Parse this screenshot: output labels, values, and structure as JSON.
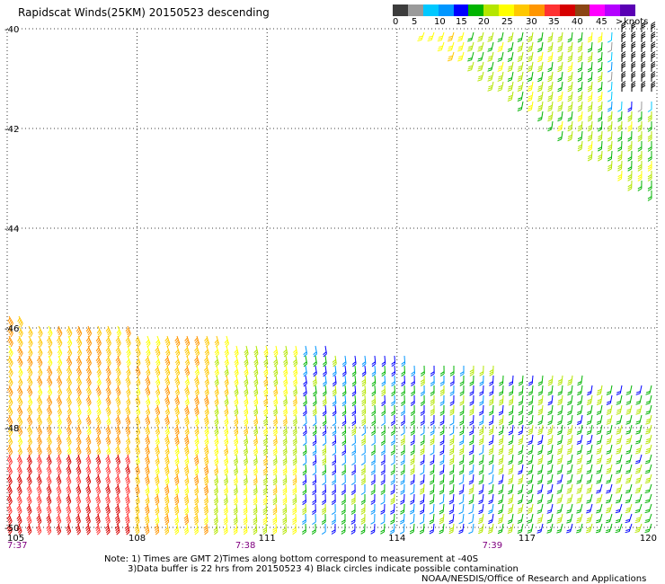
{
  "title": "Rapidscat Winds(25KM) 20150523 descending",
  "legend": {
    "colors": [
      "#3c3c3c",
      "#9a9a9a",
      "#00c8ff",
      "#0096ff",
      "#0000ff",
      "#00b400",
      "#b4e600",
      "#ffff00",
      "#ffc800",
      "#ff9600",
      "#ff3232",
      "#d70000",
      "#8b4513",
      "#ff00ff",
      "#b400ff",
      "#5a00b4"
    ],
    "ticks": [
      "0",
      "5",
      "10",
      "15",
      "20",
      "25",
      "30",
      "35",
      "40",
      "45",
      ">50"
    ],
    "unit": "knots"
  },
  "axes": {
    "lat_labels": [
      "-40",
      "-42",
      "-44",
      "-46",
      "-48",
      "-50"
    ],
    "lon_labels": [
      "105",
      "108",
      "111",
      "114",
      "117",
      "120"
    ],
    "lat_range": [
      -50,
      -40
    ],
    "lon_range": [
      105,
      120
    ],
    "gridlines": "dotted"
  },
  "pass_times": [
    {
      "label": "7:37",
      "lon": 105
    },
    {
      "label": "7:38",
      "lon": 110.5
    },
    {
      "label": "7:39",
      "lon": 116.2
    }
  ],
  "notes": {
    "line1": "Note: 1) Times are GMT 2)Times along bottom correspond to measurement at -40S",
    "line2": "3)Data buffer is 22 hrs from 20150523 4) Black circles indicate possible contamination",
    "credit": "NOAA/NESDIS/Office of Research and Applications"
  }
}
